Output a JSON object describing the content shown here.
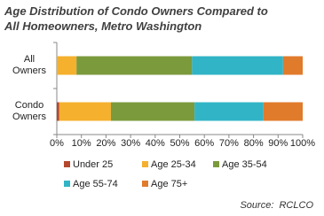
{
  "chart_data": {
    "type": "stacked-bar-horizontal",
    "title": "Age Distribution of Condo Owners Compared to All Homeowners, Metro Washington",
    "categories": [
      "All Owners",
      "Condo Owners"
    ],
    "series": [
      {
        "name": "Under 25",
        "color": "#b5472c",
        "values": [
          0,
          1
        ]
      },
      {
        "name": "Age 25-34",
        "color": "#f5b02e",
        "values": [
          8,
          21
        ]
      },
      {
        "name": "Age 35-54",
        "color": "#7b9a3c",
        "values": [
          47,
          34
        ]
      },
      {
        "name": "Age 55-74",
        "color": "#31b4c6",
        "values": [
          37,
          28
        ]
      },
      {
        "name": "Age 75+",
        "color": "#e07b2c",
        "values": [
          8,
          16
        ]
      }
    ],
    "xlim": [
      0,
      100
    ],
    "xticks": [
      {
        "value": 0,
        "label": "0%"
      },
      {
        "value": 10,
        "label": "10%"
      },
      {
        "value": 20,
        "label": "20%"
      },
      {
        "value": 30,
        "label": "30%"
      },
      {
        "value": 40,
        "label": "40%"
      },
      {
        "value": 50,
        "label": "50%"
      },
      {
        "value": 60,
        "label": "60%"
      },
      {
        "value": 70,
        "label": "70%"
      },
      {
        "value": 80,
        "label": "80%"
      },
      {
        "value": 90,
        "label": "90%"
      },
      {
        "value": 100,
        "label": "100%"
      }
    ],
    "grid": false,
    "source": "Source:  RCLCO"
  }
}
